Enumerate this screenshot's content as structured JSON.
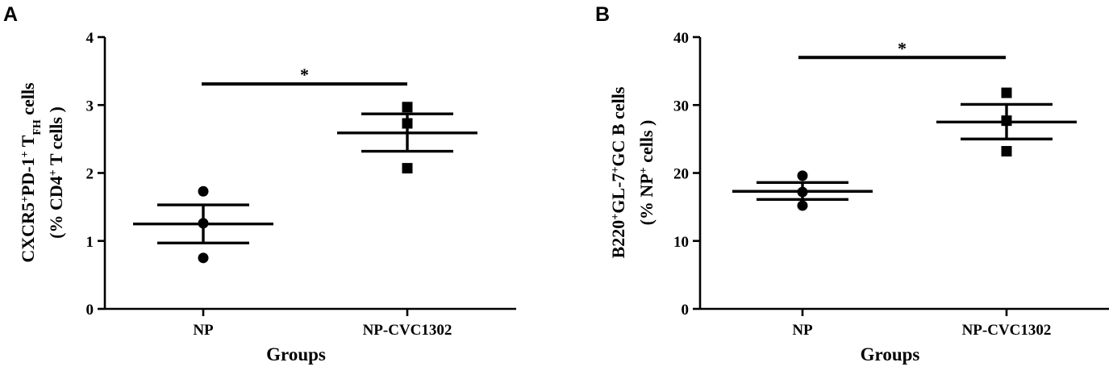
{
  "chart_data": [
    {
      "type": "scatter",
      "panel": "A",
      "xlabel": "Groups",
      "ylabel_line1": "CXCR5⁺PD-1⁺ T_FH cells",
      "ylabel_line1_parts": [
        "CXCR5",
        "+",
        "PD-1",
        "+",
        " T",
        "FH",
        " cells"
      ],
      "ylabel_line2_parts": [
        "(% CD4",
        "+",
        " T cells )"
      ],
      "ylim": [
        0,
        4
      ],
      "yticks": [
        "0",
        "1",
        "2",
        "3",
        "4"
      ],
      "categories": [
        "NP",
        "NP-CVC1302"
      ],
      "series": [
        {
          "category": "NP",
          "marker": "circle",
          "points": [
            1.73,
            1.26,
            0.75
          ],
          "mean": 1.25,
          "sem_low": 0.97,
          "sem_high": 1.53
        },
        {
          "category": "NP-CVC1302",
          "marker": "square",
          "points": [
            2.97,
            2.73,
            2.07
          ],
          "mean": 2.59,
          "sem_low": 2.32,
          "sem_high": 2.87
        }
      ],
      "significance": {
        "label": "*",
        "y": 3.31
      }
    },
    {
      "type": "scatter",
      "panel": "B",
      "xlabel": "Groups",
      "ylabel_line1_parts": [
        "B220",
        "+",
        "GL-7",
        "+",
        "GC B cells"
      ],
      "ylabel_line2_parts": [
        "(% NP",
        "+",
        " cells )"
      ],
      "ylim": [
        0,
        40
      ],
      "yticks": [
        "0",
        "10",
        "20",
        "30",
        "40"
      ],
      "categories": [
        "NP",
        "NP-CVC1302"
      ],
      "series": [
        {
          "category": "NP",
          "marker": "circle",
          "points": [
            19.6,
            17.2,
            15.2
          ],
          "mean": 17.3,
          "sem_low": 16.1,
          "sem_high": 18.6
        },
        {
          "category": "NP-CVC1302",
          "marker": "square",
          "points": [
            31.8,
            27.7,
            23.2
          ],
          "mean": 27.5,
          "sem_low": 25.0,
          "sem_high": 30.1
        }
      ],
      "significance": {
        "label": "*",
        "y": 37.0
      }
    }
  ]
}
